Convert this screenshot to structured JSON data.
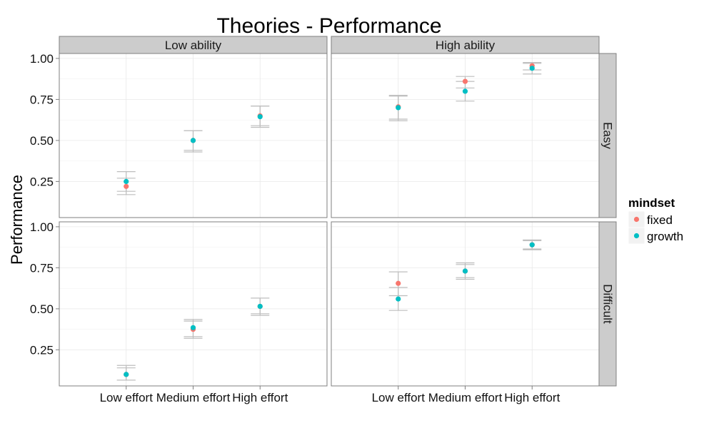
{
  "chart_data": {
    "type": "scatter",
    "title": "Theories - Performance",
    "xlabel": "",
    "ylabel": "Performance",
    "categories": [
      "Low effort",
      "Medium effort",
      "High effort"
    ],
    "y_ticks": [
      "0.25",
      "0.50",
      "0.75",
      "1.00"
    ],
    "ylim": [
      0.03,
      1.03
    ],
    "grid": true,
    "legend": {
      "title": "mindset",
      "position": "right",
      "entries": [
        {
          "name": "fixed",
          "color": "#f8766d"
        },
        {
          "name": "growth",
          "color": "#00bfc4"
        }
      ]
    },
    "col_facets": [
      "Low ability",
      "High ability"
    ],
    "row_facets": [
      "Easy",
      "Difficult"
    ],
    "panels": [
      {
        "col": "Low ability",
        "row": "Easy",
        "series": [
          {
            "name": "fixed",
            "values": [
              0.22,
              0.5,
              0.65
            ],
            "lower": [
              0.17,
              0.44,
              0.59
            ],
            "upper": [
              0.27,
              0.56,
              0.71
            ]
          },
          {
            "name": "growth",
            "values": [
              0.25,
              0.5,
              0.645
            ],
            "lower": [
              0.19,
              0.43,
              0.58
            ],
            "upper": [
              0.31,
              0.56,
              0.71
            ]
          }
        ]
      },
      {
        "col": "High ability",
        "row": "Easy",
        "series": [
          {
            "name": "fixed",
            "values": [
              0.705,
              0.86,
              0.955
            ],
            "lower": [
              0.63,
              0.82,
              0.93
            ],
            "upper": [
              0.77,
              0.89,
              0.975
            ]
          },
          {
            "name": "growth",
            "values": [
              0.7,
              0.8,
              0.94
            ],
            "lower": [
              0.62,
              0.74,
              0.905
            ],
            "upper": [
              0.775,
              0.86,
              0.97
            ]
          }
        ]
      },
      {
        "col": "Low ability",
        "row": "Difficult",
        "series": [
          {
            "name": "fixed",
            "values": [
              0.1,
              0.375,
              0.515
            ],
            "lower": [
              0.065,
              0.33,
              0.47
            ],
            "upper": [
              0.14,
              0.425,
              0.565
            ]
          },
          {
            "name": "growth",
            "values": [
              0.1,
              0.385,
              0.515
            ],
            "lower": [
              0.065,
              0.32,
              0.46
            ],
            "upper": [
              0.155,
              0.435,
              0.565
            ]
          }
        ]
      },
      {
        "col": "High ability",
        "row": "Difficult",
        "series": [
          {
            "name": "fixed",
            "values": [
              0.655,
              0.73,
              0.89
            ],
            "lower": [
              0.58,
              0.69,
              0.865
            ],
            "upper": [
              0.725,
              0.77,
              0.915
            ]
          },
          {
            "name": "growth",
            "values": [
              0.56,
              0.73,
              0.89
            ],
            "lower": [
              0.49,
              0.68,
              0.86
            ],
            "upper": [
              0.63,
              0.78,
              0.92
            ]
          }
        ]
      }
    ]
  }
}
